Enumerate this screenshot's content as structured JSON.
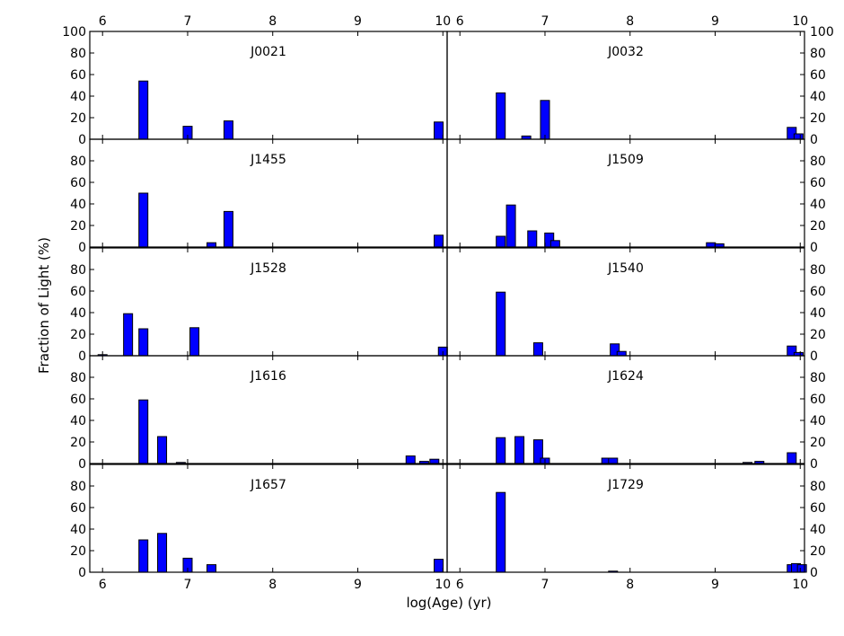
{
  "chart_data": {
    "type": "bar",
    "xlabel": "log(Age) (yr)",
    "ylabel": "Fraction of Light (%)",
    "xlim": [
      5.85,
      10.05
    ],
    "ylim": [
      0,
      100
    ],
    "x_ticks": [
      "6",
      "7",
      "8",
      "9",
      "10"
    ],
    "y_ticks_top_panel": [
      "0",
      "20",
      "40",
      "60",
      "80",
      "100"
    ],
    "y_ticks_other_panels": [
      "0",
      "20",
      "40",
      "60",
      "80"
    ],
    "bar_color": "#0000ff",
    "bar_edge_color": "#000000",
    "grid": false,
    "panels": [
      {
        "label": "J0021",
        "bars": [
          {
            "x": 6.48,
            "y": 54
          },
          {
            "x": 7.0,
            "y": 12
          },
          {
            "x": 7.48,
            "y": 17
          },
          {
            "x": 9.95,
            "y": 16
          }
        ]
      },
      {
        "label": "J0032",
        "bars": [
          {
            "x": 6.48,
            "y": 43
          },
          {
            "x": 6.78,
            "y": 3
          },
          {
            "x": 7.0,
            "y": 36
          },
          {
            "x": 9.9,
            "y": 11
          },
          {
            "x": 9.98,
            "y": 5
          }
        ]
      },
      {
        "label": "J1455",
        "bars": [
          {
            "x": 6.48,
            "y": 50
          },
          {
            "x": 7.28,
            "y": 4
          },
          {
            "x": 7.48,
            "y": 33
          },
          {
            "x": 9.95,
            "y": 11
          }
        ]
      },
      {
        "label": "J1509",
        "bars": [
          {
            "x": 6.48,
            "y": 10
          },
          {
            "x": 6.6,
            "y": 39
          },
          {
            "x": 6.85,
            "y": 15
          },
          {
            "x": 7.05,
            "y": 13
          },
          {
            "x": 7.12,
            "y": 6
          },
          {
            "x": 8.95,
            "y": 4
          },
          {
            "x": 9.05,
            "y": 3
          }
        ]
      },
      {
        "label": "J1528",
        "bars": [
          {
            "x": 6.0,
            "y": 1
          },
          {
            "x": 6.3,
            "y": 39
          },
          {
            "x": 6.48,
            "y": 25
          },
          {
            "x": 7.08,
            "y": 26
          },
          {
            "x": 10.0,
            "y": 8
          }
        ]
      },
      {
        "label": "J1540",
        "bars": [
          {
            "x": 6.48,
            "y": 59
          },
          {
            "x": 6.92,
            "y": 12
          },
          {
            "x": 7.82,
            "y": 11
          },
          {
            "x": 7.9,
            "y": 4
          },
          {
            "x": 9.9,
            "y": 9
          },
          {
            "x": 9.98,
            "y": 3
          }
        ]
      },
      {
        "label": "J1616",
        "bars": [
          {
            "x": 6.48,
            "y": 59
          },
          {
            "x": 6.7,
            "y": 25
          },
          {
            "x": 6.92,
            "y": 1
          },
          {
            "x": 9.62,
            "y": 7
          },
          {
            "x": 9.78,
            "y": 2
          },
          {
            "x": 9.9,
            "y": 4
          }
        ]
      },
      {
        "label": "J1624",
        "bars": [
          {
            "x": 6.48,
            "y": 24
          },
          {
            "x": 6.7,
            "y": 25
          },
          {
            "x": 6.92,
            "y": 22
          },
          {
            "x": 7.0,
            "y": 5
          },
          {
            "x": 7.72,
            "y": 5
          },
          {
            "x": 7.8,
            "y": 5
          },
          {
            "x": 9.38,
            "y": 1
          },
          {
            "x": 9.52,
            "y": 2
          },
          {
            "x": 9.9,
            "y": 10
          }
        ]
      },
      {
        "label": "J1657",
        "bars": [
          {
            "x": 6.48,
            "y": 30
          },
          {
            "x": 6.7,
            "y": 36
          },
          {
            "x": 7.0,
            "y": 13
          },
          {
            "x": 7.28,
            "y": 7
          },
          {
            "x": 9.95,
            "y": 12
          }
        ]
      },
      {
        "label": "J1729",
        "bars": [
          {
            "x": 6.48,
            "y": 74
          },
          {
            "x": 7.8,
            "y": 1
          },
          {
            "x": 9.9,
            "y": 7
          },
          {
            "x": 9.95,
            "y": 8
          },
          {
            "x": 10.02,
            "y": 7
          }
        ]
      }
    ]
  }
}
